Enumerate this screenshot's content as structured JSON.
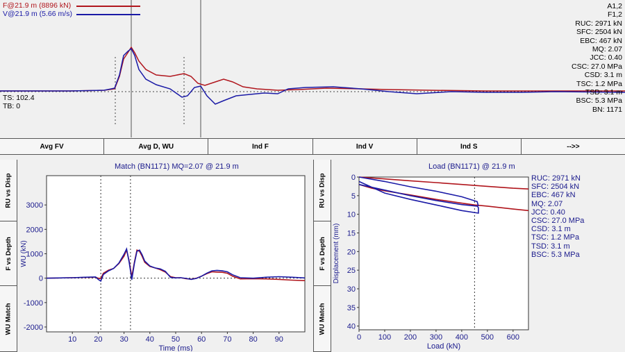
{
  "top": {
    "legend_f": "F@21.9 m (8896 kN)",
    "legend_v": "V@21.9 m (5.66 m/s)",
    "ts_label": "TS: 102.4",
    "tb_label": "TB: 0",
    "stats": [
      "A1,2",
      "F1,2",
      "RUC: 2971 kN",
      "SFC: 2504 kN",
      "EBC: 467 kN",
      "MQ: 2.07",
      "JCC: 0.40",
      "CSC: 27.0 MPa",
      "CSD: 3.1 m",
      "TSC: 1.2 MPa",
      "TSD: 3.1 m",
      "BSC: 5.3 MPa",
      "BN: 1171"
    ]
  },
  "tabs": [
    "Avg FV",
    "Avg D, WU",
    "Ind F",
    "Ind V",
    "Ind S",
    "-->>"
  ],
  "left_vtabs": [
    "RU vs Disp",
    "F vs Depth",
    "WU Match"
  ],
  "right_vtabs": [
    "RU vs Disp",
    "F vs Depth",
    "WU Match"
  ],
  "colors": {
    "force": "#b0151c",
    "velocity": "#1a1aa6",
    "axis_text": "#1a1a8c"
  },
  "chart_data": [
    {
      "type": "line",
      "title": "Match (BN1171) MQ=2.07 @ 21.9 m",
      "xlabel": "Time (ms)",
      "ylabel": "WU (kN)",
      "xlim": [
        0,
        100
      ],
      "ylim": [
        -2200,
        4200
      ],
      "xticks": [
        10,
        20,
        30,
        40,
        50,
        60,
        70,
        80,
        90
      ],
      "yticks": [
        -2000,
        -1000,
        0,
        1000,
        2000,
        3000
      ],
      "vlines": [
        21,
        32.5
      ],
      "series": [
        {
          "color": "#b0151c",
          "x": [
            0,
            5,
            10,
            15,
            19,
            20,
            21,
            22,
            24,
            26,
            28,
            30,
            31,
            32,
            33,
            34,
            35,
            36,
            37,
            38,
            40,
            42,
            44,
            46,
            48,
            50,
            52,
            54,
            56,
            58,
            60,
            62,
            64,
            66,
            68,
            70,
            72,
            75,
            80,
            85,
            90,
            95,
            100
          ],
          "y": [
            0,
            10,
            20,
            30,
            40,
            0,
            -20,
            200,
            330,
            400,
            600,
            900,
            1150,
            700,
            60,
            650,
            1150,
            1100,
            900,
            650,
            480,
            420,
            350,
            250,
            60,
            20,
            20,
            -20,
            -40,
            0,
            80,
            180,
            260,
            250,
            240,
            200,
            80,
            -30,
            -20,
            -30,
            -50,
            -80,
            -100
          ]
        },
        {
          "color": "#1a1aa6",
          "x": [
            0,
            5,
            10,
            15,
            19,
            20,
            21,
            22,
            24,
            26,
            28,
            30,
            31,
            32,
            33,
            34,
            35,
            36,
            37,
            38,
            40,
            42,
            44,
            46,
            48,
            50,
            52,
            54,
            56,
            58,
            60,
            62,
            64,
            66,
            68,
            70,
            72,
            75,
            80,
            85,
            90,
            95,
            100
          ],
          "y": [
            0,
            10,
            20,
            40,
            50,
            -50,
            -120,
            150,
            300,
            400,
            620,
            980,
            1200,
            650,
            -60,
            600,
            1100,
            1150,
            960,
            700,
            500,
            420,
            380,
            280,
            30,
            10,
            20,
            -10,
            -50,
            -10,
            80,
            200,
            300,
            320,
            300,
            260,
            140,
            20,
            0,
            40,
            60,
            40,
            10
          ]
        }
      ]
    },
    {
      "type": "line",
      "title": "Load (BN1171) @ 21.9 m",
      "xlabel": "Load (kN)",
      "ylabel": "Displacement (mm)",
      "xlim": [
        0,
        660
      ],
      "ylim": [
        0,
        41
      ],
      "xticks": [
        0,
        100,
        200,
        300,
        400,
        500,
        600
      ],
      "yticks": [
        0,
        5,
        10,
        15,
        20,
        25,
        30,
        35,
        40
      ],
      "vlines": [
        450
      ],
      "series": [
        {
          "color": "#b0151c",
          "x": [
            0,
            100,
            200,
            300,
            400,
            500,
            600,
            660
          ],
          "y": [
            0,
            0.5,
            1.0,
            1.5,
            2.0,
            2.5,
            3.0,
            3.2
          ]
        },
        {
          "color": "#b0151c",
          "x": [
            0,
            50,
            100,
            200,
            300,
            400,
            450,
            500,
            600,
            660
          ],
          "y": [
            2.0,
            3.0,
            3.7,
            4.8,
            6.0,
            7.0,
            7.5,
            7.8,
            8.6,
            9.0
          ]
        },
        {
          "color": "#1a1aa6",
          "x": [
            0,
            100,
            200,
            300,
            400,
            460,
            465,
            465,
            400,
            300,
            200,
            100,
            0
          ],
          "y": [
            2.0,
            3.5,
            5.0,
            6.3,
            7.4,
            7.8,
            8.2,
            9.7,
            9.0,
            7.5,
            6.0,
            4.3,
            1.2
          ]
        },
        {
          "color": "#1a1aa6",
          "x": [
            0,
            100,
            200,
            300,
            400,
            460,
            465
          ],
          "y": [
            0,
            1.2,
            2.6,
            3.8,
            5.3,
            6.6,
            7.8
          ]
        }
      ],
      "stats": [
        "RUC: 2971 kN",
        "SFC: 2504 kN",
        "EBC: 467 kN",
        "MQ: 2.07",
        "JCC: 0.40",
        "CSC: 27.0 MPa",
        "CSD: 3.1 m",
        "TSC: 1.2 MPa",
        "TSD: 3.1 m",
        "BSC: 5.3 MPa"
      ]
    }
  ]
}
